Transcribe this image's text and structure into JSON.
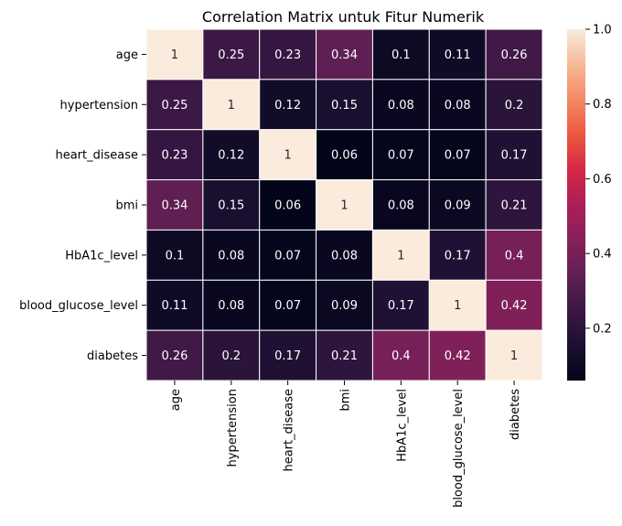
{
  "chart_data": {
    "type": "heatmap",
    "title": "Correlation Matrix untuk Fitur Numerik",
    "xlabel": "",
    "ylabel": "",
    "rows": [
      "age",
      "hypertension",
      "heart_disease",
      "bmi",
      "HbA1c_level",
      "blood_glucose_level",
      "diabetes"
    ],
    "columns": [
      "age",
      "hypertension",
      "heart_disease",
      "bmi",
      "HbA1c_level",
      "blood_glucose_level",
      "diabetes"
    ],
    "values": [
      [
        1,
        0.25,
        0.23,
        0.34,
        0.1,
        0.11,
        0.26
      ],
      [
        0.25,
        1,
        0.12,
        0.15,
        0.08,
        0.08,
        0.2
      ],
      [
        0.23,
        0.12,
        1,
        0.06,
        0.07,
        0.07,
        0.17
      ],
      [
        0.34,
        0.15,
        0.06,
        1,
        0.08,
        0.09,
        0.21
      ],
      [
        0.1,
        0.08,
        0.07,
        0.08,
        1,
        0.17,
        0.4
      ],
      [
        0.11,
        0.08,
        0.07,
        0.09,
        0.17,
        1,
        0.42
      ],
      [
        0.26,
        0.2,
        0.17,
        0.21,
        0.4,
        0.42,
        1
      ]
    ],
    "colormap": "rocket",
    "color_range": [
      0.06,
      1.0
    ],
    "colorbar_ticks": [
      "0.2",
      "0.4",
      "0.6",
      "0.8",
      "1.0"
    ],
    "cell_border_color": "#ffffff",
    "annotation_light_color": "#ffffff",
    "annotation_dark_color": "#262626",
    "legend": "colorbar-right"
  }
}
